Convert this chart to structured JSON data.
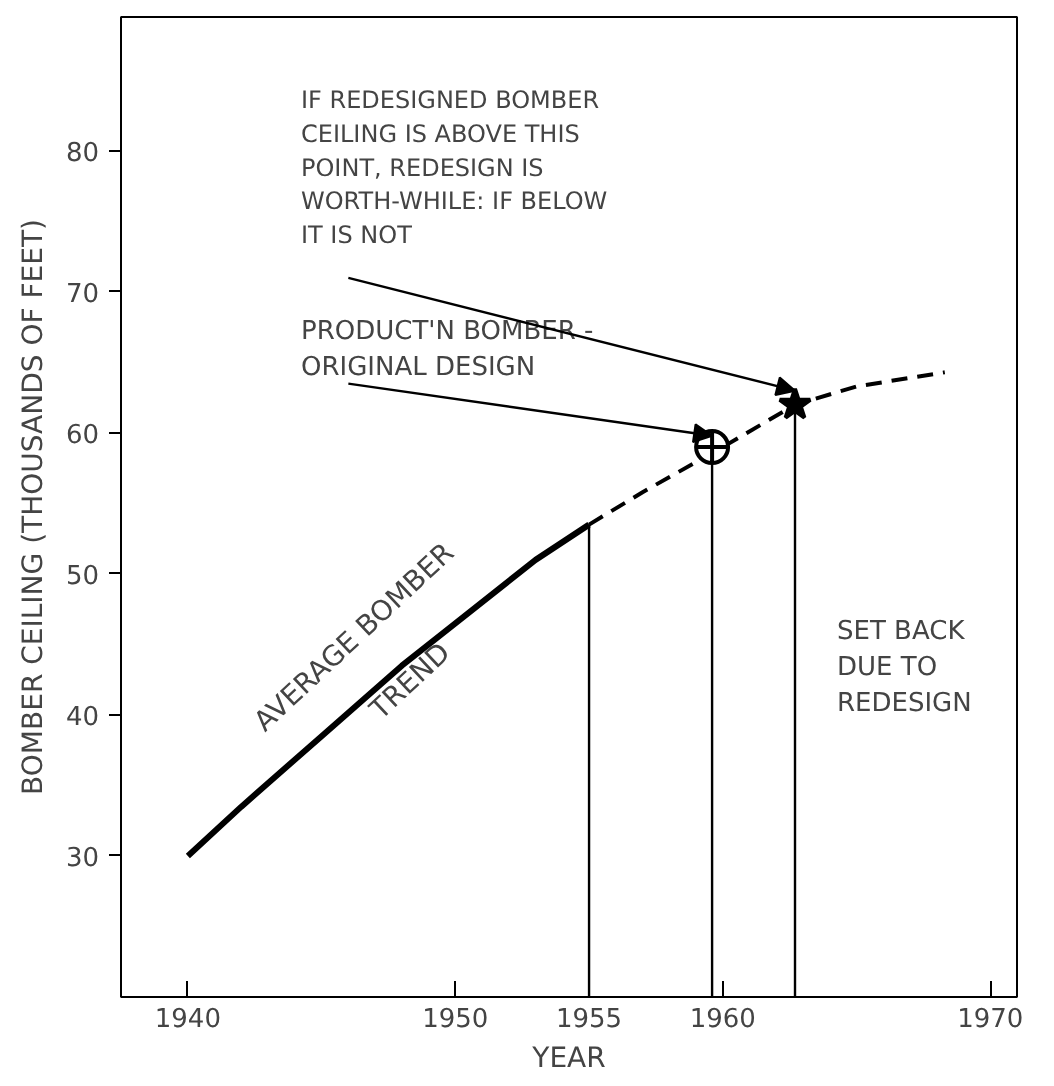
{
  "chart_data": {
    "type": "line",
    "xlabel": "YEAR",
    "ylabel": "BOMBER CEILING (THOUSANDS OF FEET)",
    "xlim": [
      1937.5,
      1971
    ],
    "ylim": [
      20,
      89.5
    ],
    "xticks": [
      1940,
      1950,
      1955,
      1960,
      1970
    ],
    "yticks": [
      30,
      40,
      50,
      60,
      70,
      80
    ],
    "grid": false,
    "series": [
      {
        "color": "#000000",
        "line_style": "solid",
        "x": [
          1940,
          1942,
          1945,
          1948,
          1950,
          1953,
          1955
        ],
        "values": [
          30,
          33.5,
          38.5,
          43.5,
          46.5,
          51,
          53.5
        ]
      },
      {
        "color": "#000000",
        "line_style": "dashed",
        "x": [
          1955,
          1957,
          1960,
          1962.7,
          1965,
          1968.3
        ],
        "values": [
          53.5,
          55.8,
          59,
          62,
          63.3,
          64.3
        ]
      },
      {
        "type": "scatter",
        "color": "#000000",
        "marker": "circle",
        "x": [
          1959.6
        ],
        "values": [
          59
        ]
      },
      {
        "type": "scatter",
        "color": "#000000",
        "marker": "star",
        "x": [
          1962.7
        ],
        "values": [
          62
        ]
      }
    ],
    "ref_lines": [
      {
        "axis": "x",
        "value": 1955,
        "color": "#000000"
      },
      {
        "axis": "x",
        "value": 1959.6,
        "color": "#000000"
      },
      {
        "axis": "x",
        "value": 1962.7,
        "color": "#000000"
      }
    ],
    "annotations": [
      {
        "text": "AVERAGE BOMBER TREND",
        "x": 1948,
        "y": 43.5
      },
      {
        "text": "PRODUCT'N BOMBER - ORIGINAL DESIGN",
        "x": 1959.6,
        "y": 59
      },
      {
        "text": "IF REDESIGNED BOMBER CEILING IS ABOVE THIS POINT, REDESIGN IS WORTH-WHILE: IF BELOW IT IS NOT",
        "x": 1962.7,
        "y": 62
      },
      "SET BACK DUE TO REDESIGN"
    ]
  }
}
